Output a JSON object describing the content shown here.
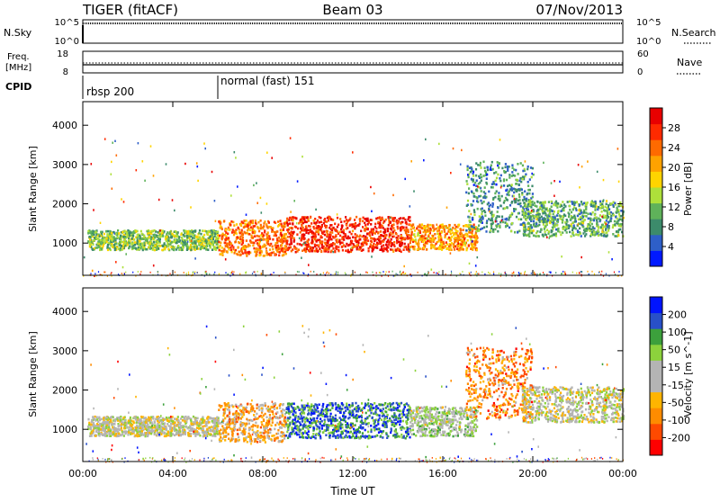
{
  "header": {
    "radar": "TIGER (fitACF)",
    "beam": "Beam 03",
    "date": "07/Nov/2013"
  },
  "status": {
    "nsky_label": "N.Sky",
    "nsky_ticks": [
      "10^5",
      "10^0"
    ],
    "nsearch_label": "N.Search",
    "nsearch_ticks": [
      "10^5",
      "10^0"
    ],
    "freq_label": "Freq.",
    "freq_unit": "[MHz]",
    "freq_ticks": [
      "18",
      "8"
    ],
    "nave_label": "Nave",
    "nave_ticks": [
      "60",
      "0"
    ],
    "cpid_label": "CPID",
    "cpid_segments": [
      {
        "label": "rbsp 200",
        "start": "00:00"
      },
      {
        "label": "normal (fast) 151",
        "start": "06:00"
      }
    ]
  },
  "chart_data": [
    {
      "type": "heatmap",
      "title": "",
      "xlabel": "",
      "ylabel": "Slant Range [km]",
      "x_ticks": [
        "00:00",
        "04:00",
        "08:00",
        "12:00",
        "16:00",
        "20:00",
        "00:00"
      ],
      "y_ticks": [
        "1000",
        "2000",
        "3000",
        "4000"
      ],
      "xlim_hours": [
        0,
        24
      ],
      "ylim_km": [
        180,
        4600
      ],
      "colorbar": {
        "label": "Power [dB]",
        "ticks": [
          "28",
          "24",
          "20",
          "16",
          "12",
          "8",
          "4"
        ],
        "range": [
          0,
          30
        ],
        "colors": [
          "#0019ff",
          "#2e5fc8",
          "#3c8b6b",
          "#5fb25a",
          "#aee03a",
          "#ffd400",
          "#ffa200",
          "#ff6a00",
          "#ff2a00",
          "#e80000"
        ]
      },
      "echo_bands": [
        {
          "start_hour": 0.2,
          "end_hour": 6.0,
          "range_km_min": 850,
          "range_km_max": 1350,
          "value": 12
        },
        {
          "start_hour": 6.0,
          "end_hour": 9.0,
          "range_km_min": 700,
          "range_km_max": 1600,
          "value": 22
        },
        {
          "start_hour": 9.0,
          "end_hour": 14.5,
          "range_km_min": 800,
          "range_km_max": 1700,
          "value": 26
        },
        {
          "start_hour": 14.5,
          "end_hour": 17.5,
          "range_km_min": 850,
          "range_km_max": 1500,
          "value": 20
        },
        {
          "start_hour": 17.0,
          "end_hour": 20.0,
          "range_km_min": 1300,
          "range_km_max": 3100,
          "value": 8
        },
        {
          "start_hour": 19.5,
          "end_hour": 24.0,
          "range_km_min": 1200,
          "range_km_max": 2100,
          "value": 10
        }
      ]
    },
    {
      "type": "heatmap",
      "title": "",
      "xlabel": "Time UT",
      "ylabel": "Slant Range [km]",
      "x_ticks": [
        "00:00",
        "04:00",
        "08:00",
        "12:00",
        "16:00",
        "20:00",
        "00:00"
      ],
      "y_ticks": [
        "1000",
        "2000",
        "3000",
        "4000"
      ],
      "xlim_hours": [
        0,
        24
      ],
      "ylim_km": [
        180,
        4600
      ],
      "colorbar": {
        "label": "Velocity [m s^-1]",
        "ticks": [
          "200",
          "100",
          "50",
          "15",
          "-15",
          "-50",
          "-100",
          "-200"
        ],
        "range": [
          -250,
          250
        ],
        "colors": [
          "#ff0000",
          "#ff4a00",
          "#ff8c00",
          "#ffb400",
          "#b4b4b4",
          "#b4b4b4",
          "#8cd23c",
          "#3ca03c",
          "#2850c8",
          "#0014ff"
        ]
      },
      "echo_bands": [
        {
          "start_hour": 0.2,
          "end_hour": 6.0,
          "range_km_min": 850,
          "range_km_max": 1350,
          "value": 0
        },
        {
          "start_hour": 6.0,
          "end_hour": 9.0,
          "range_km_min": 700,
          "range_km_max": 1700,
          "value": -80
        },
        {
          "start_hour": 9.0,
          "end_hour": 14.5,
          "range_km_min": 800,
          "range_km_max": 1700,
          "value": 150
        },
        {
          "start_hour": 14.5,
          "end_hour": 17.5,
          "range_km_min": 850,
          "range_km_max": 1600,
          "value": 30
        },
        {
          "start_hour": 17.0,
          "end_hour": 20.0,
          "range_km_min": 1300,
          "range_km_max": 3100,
          "value": -120
        },
        {
          "start_hour": 19.5,
          "end_hour": 24.0,
          "range_km_min": 1200,
          "range_km_max": 2100,
          "value": 0
        }
      ]
    }
  ]
}
